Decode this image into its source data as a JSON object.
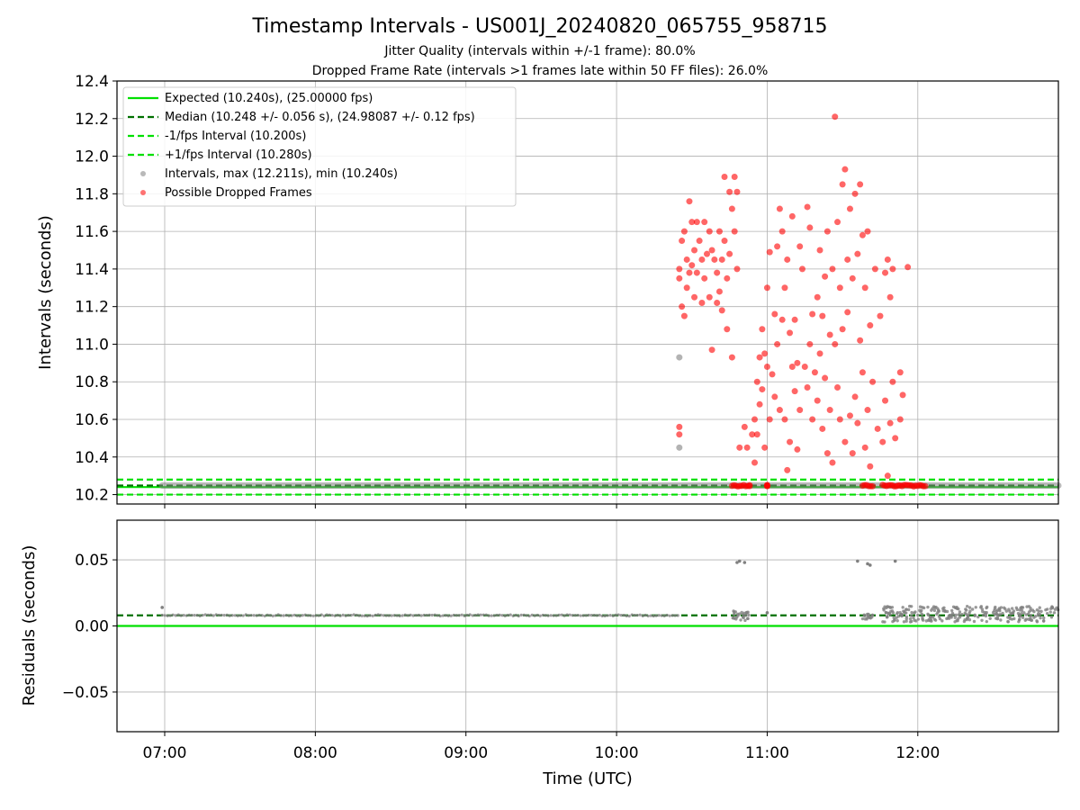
{
  "chart_data": [
    {
      "type": "scatter",
      "title": "Timestamp Intervals - US001J_20240820_065755_958715",
      "subtitle_1": "Jitter Quality (intervals within +/-1 frame): 80.0%",
      "subtitle_2": "Dropped Frame Rate (intervals >1 frames late within 50 FF files): 26.0%",
      "xlabel": "",
      "ylabel": "Intervals (seconds)",
      "xlim": [
        "06:41",
        "12:56"
      ],
      "ylim": [
        10.15,
        12.4
      ],
      "y_ticks": [
        "10.2",
        "10.4",
        "10.6",
        "10.8",
        "11.0",
        "11.2",
        "11.4",
        "11.6",
        "11.8",
        "12.0",
        "12.2",
        "12.4"
      ],
      "grid": true,
      "legend_position": "upper-left",
      "legend": [
        "Expected (10.240s), (25.00000 fps)",
        "Median (10.248 +/- 0.056 s), (24.98087 +/- 0.12 fps)",
        "-1/fps Interval (10.200s)",
        "+1/fps Interval (10.280s)",
        "Intervals, max (12.211s), min (10.240s)",
        "Possible Dropped Frames"
      ],
      "lines": {
        "expected": 10.24,
        "median": 10.248,
        "minus_1fps": 10.2,
        "plus_1fps": 10.28
      },
      "colors": {
        "expected": "#00e000",
        "median": "#007000",
        "bounds": "#00e000",
        "intervals": "#808080",
        "dropped": "#ff0000"
      },
      "normal_intervals_band": {
        "x_start": "06:59",
        "x_end": "12:56",
        "y": 10.248
      },
      "gray_outliers": [
        {
          "x": "10:25",
          "y": 10.93
        },
        {
          "x": "10:25",
          "y": 10.45
        }
      ],
      "dropped_frames_baseline": [
        {
          "x_start": "10:46",
          "x_end": "10:53",
          "y": 10.248
        },
        {
          "x_start": "11:00",
          "x_end": "11:00",
          "y": 10.248
        },
        {
          "x_start": "11:38",
          "x_end": "11:42",
          "y": 10.248
        },
        {
          "x_start": "11:46",
          "x_end": "12:03",
          "y": 10.248
        }
      ],
      "dropped_frames": [
        {
          "x": "10:25",
          "y": 11.4
        },
        {
          "x": "10:25",
          "y": 11.35
        },
        {
          "x": "10:26",
          "y": 11.55
        },
        {
          "x": "10:26",
          "y": 11.2
        },
        {
          "x": "10:27",
          "y": 11.6
        },
        {
          "x": "10:27",
          "y": 11.15
        },
        {
          "x": "10:28",
          "y": 11.45
        },
        {
          "x": "10:28",
          "y": 11.3
        },
        {
          "x": "10:29",
          "y": 11.76
        },
        {
          "x": "10:29",
          "y": 11.38
        },
        {
          "x": "10:30",
          "y": 11.65
        },
        {
          "x": "10:30",
          "y": 11.42
        },
        {
          "x": "10:31",
          "y": 11.25
        },
        {
          "x": "10:31",
          "y": 11.5
        },
        {
          "x": "10:32",
          "y": 11.65
        },
        {
          "x": "10:32",
          "y": 11.38
        },
        {
          "x": "10:33",
          "y": 11.55
        },
        {
          "x": "10:34",
          "y": 11.45
        },
        {
          "x": "10:34",
          "y": 11.22
        },
        {
          "x": "10:35",
          "y": 11.65
        },
        {
          "x": "10:35",
          "y": 11.35
        },
        {
          "x": "10:36",
          "y": 11.48
        },
        {
          "x": "10:37",
          "y": 11.6
        },
        {
          "x": "10:37",
          "y": 11.25
        },
        {
          "x": "10:38",
          "y": 11.5
        },
        {
          "x": "10:38",
          "y": 10.97
        },
        {
          "x": "10:39",
          "y": 11.45
        },
        {
          "x": "10:40",
          "y": 11.38
        },
        {
          "x": "10:40",
          "y": 11.22
        },
        {
          "x": "10:41",
          "y": 11.6
        },
        {
          "x": "10:41",
          "y": 11.28
        },
        {
          "x": "10:42",
          "y": 11.45
        },
        {
          "x": "10:42",
          "y": 11.18
        },
        {
          "x": "10:43",
          "y": 11.89
        },
        {
          "x": "10:43",
          "y": 11.55
        },
        {
          "x": "10:44",
          "y": 11.35
        },
        {
          "x": "10:44",
          "y": 11.08
        },
        {
          "x": "10:45",
          "y": 11.81
        },
        {
          "x": "10:45",
          "y": 11.48
        },
        {
          "x": "10:46",
          "y": 11.72
        },
        {
          "x": "10:46",
          "y": 10.93
        },
        {
          "x": "10:47",
          "y": 11.89
        },
        {
          "x": "10:47",
          "y": 11.6
        },
        {
          "x": "10:48",
          "y": 11.81
        },
        {
          "x": "10:48",
          "y": 11.4
        },
        {
          "x": "10:49",
          "y": 10.45
        },
        {
          "x": "10:25",
          "y": 10.56
        },
        {
          "x": "10:25",
          "y": 10.52
        },
        {
          "x": "10:51",
          "y": 10.56
        },
        {
          "x": "10:52",
          "y": 10.45
        },
        {
          "x": "10:53",
          "y": 10.25
        },
        {
          "x": "10:54",
          "y": 10.52
        },
        {
          "x": "10:55",
          "y": 10.6
        },
        {
          "x": "10:55",
          "y": 10.37
        },
        {
          "x": "10:56",
          "y": 10.8
        },
        {
          "x": "10:56",
          "y": 10.52
        },
        {
          "x": "10:57",
          "y": 10.93
        },
        {
          "x": "10:57",
          "y": 10.68
        },
        {
          "x": "10:58",
          "y": 11.08
        },
        {
          "x": "10:58",
          "y": 10.76
        },
        {
          "x": "10:59",
          "y": 10.45
        },
        {
          "x": "10:59",
          "y": 10.95
        },
        {
          "x": "11:00",
          "y": 11.3
        },
        {
          "x": "11:00",
          "y": 10.88
        },
        {
          "x": "11:01",
          "y": 11.49
        },
        {
          "x": "11:01",
          "y": 10.6
        },
        {
          "x": "11:02",
          "y": 10.84
        },
        {
          "x": "11:03",
          "y": 11.16
        },
        {
          "x": "11:03",
          "y": 10.72
        },
        {
          "x": "11:04",
          "y": 11.52
        },
        {
          "x": "11:04",
          "y": 11.0
        },
        {
          "x": "11:05",
          "y": 11.72
        },
        {
          "x": "11:05",
          "y": 10.65
        },
        {
          "x": "11:06",
          "y": 11.6
        },
        {
          "x": "11:06",
          "y": 11.13
        },
        {
          "x": "11:07",
          "y": 11.3
        },
        {
          "x": "11:07",
          "y": 10.6
        },
        {
          "x": "11:08",
          "y": 11.45
        },
        {
          "x": "11:08",
          "y": 10.33
        },
        {
          "x": "11:09",
          "y": 11.06
        },
        {
          "x": "11:09",
          "y": 10.48
        },
        {
          "x": "11:10",
          "y": 11.68
        },
        {
          "x": "11:10",
          "y": 10.88
        },
        {
          "x": "11:11",
          "y": 11.13
        },
        {
          "x": "11:11",
          "y": 10.75
        },
        {
          "x": "11:12",
          "y": 10.9
        },
        {
          "x": "11:12",
          "y": 10.44
        },
        {
          "x": "11:13",
          "y": 11.52
        },
        {
          "x": "11:13",
          "y": 10.65
        },
        {
          "x": "11:14",
          "y": 11.4
        },
        {
          "x": "11:15",
          "y": 10.88
        },
        {
          "x": "11:16",
          "y": 11.73
        },
        {
          "x": "11:16",
          "y": 10.77
        },
        {
          "x": "11:17",
          "y": 11.62
        },
        {
          "x": "11:17",
          "y": 11.0
        },
        {
          "x": "11:18",
          "y": 11.16
        },
        {
          "x": "11:18",
          "y": 10.6
        },
        {
          "x": "11:19",
          "y": 10.85
        },
        {
          "x": "11:20",
          "y": 11.25
        },
        {
          "x": "11:20",
          "y": 10.7
        },
        {
          "x": "11:21",
          "y": 11.5
        },
        {
          "x": "11:21",
          "y": 10.95
        },
        {
          "x": "11:22",
          "y": 11.15
        },
        {
          "x": "11:22",
          "y": 10.55
        },
        {
          "x": "11:23",
          "y": 11.36
        },
        {
          "x": "11:23",
          "y": 10.82
        },
        {
          "x": "11:24",
          "y": 11.6
        },
        {
          "x": "11:24",
          "y": 10.42
        },
        {
          "x": "11:25",
          "y": 11.05
        },
        {
          "x": "11:25",
          "y": 10.65
        },
        {
          "x": "11:26",
          "y": 11.4
        },
        {
          "x": "11:26",
          "y": 10.37
        },
        {
          "x": "11:27",
          "y": 12.21
        },
        {
          "x": "11:27",
          "y": 11.0
        },
        {
          "x": "11:28",
          "y": 11.65
        },
        {
          "x": "11:28",
          "y": 10.77
        },
        {
          "x": "11:29",
          "y": 11.3
        },
        {
          "x": "11:29",
          "y": 10.6
        },
        {
          "x": "11:30",
          "y": 11.85
        },
        {
          "x": "11:30",
          "y": 11.08
        },
        {
          "x": "11:31",
          "y": 11.93
        },
        {
          "x": "11:31",
          "y": 10.48
        },
        {
          "x": "11:32",
          "y": 11.45
        },
        {
          "x": "11:32",
          "y": 11.17
        },
        {
          "x": "11:33",
          "y": 11.72
        },
        {
          "x": "11:33",
          "y": 10.62
        },
        {
          "x": "11:34",
          "y": 11.35
        },
        {
          "x": "11:34",
          "y": 10.42
        },
        {
          "x": "11:35",
          "y": 11.8
        },
        {
          "x": "11:35",
          "y": 10.72
        },
        {
          "x": "11:36",
          "y": 11.48
        },
        {
          "x": "11:36",
          "y": 10.58
        },
        {
          "x": "11:37",
          "y": 11.85
        },
        {
          "x": "11:37",
          "y": 11.02
        },
        {
          "x": "11:38",
          "y": 11.58
        },
        {
          "x": "11:38",
          "y": 10.85
        },
        {
          "x": "11:39",
          "y": 11.3
        },
        {
          "x": "11:39",
          "y": 10.45
        },
        {
          "x": "11:40",
          "y": 11.6
        },
        {
          "x": "11:40",
          "y": 10.65
        },
        {
          "x": "11:41",
          "y": 11.1
        },
        {
          "x": "11:41",
          "y": 10.35
        },
        {
          "x": "11:42",
          "y": 10.8
        },
        {
          "x": "11:43",
          "y": 11.4
        },
        {
          "x": "11:44",
          "y": 10.55
        },
        {
          "x": "11:45",
          "y": 11.15
        },
        {
          "x": "11:46",
          "y": 10.48
        },
        {
          "x": "11:47",
          "y": 11.38
        },
        {
          "x": "11:47",
          "y": 10.7
        },
        {
          "x": "11:48",
          "y": 11.45
        },
        {
          "x": "11:48",
          "y": 10.3
        },
        {
          "x": "11:49",
          "y": 11.25
        },
        {
          "x": "11:49",
          "y": 10.58
        },
        {
          "x": "11:50",
          "y": 11.4
        },
        {
          "x": "11:50",
          "y": 10.8
        },
        {
          "x": "11:51",
          "y": 10.5
        },
        {
          "x": "11:53",
          "y": 10.85
        },
        {
          "x": "11:53",
          "y": 10.6
        },
        {
          "x": "11:54",
          "y": 10.73
        },
        {
          "x": "11:56",
          "y": 11.41
        }
      ]
    },
    {
      "type": "scatter",
      "title": "",
      "xlabel": "Time (UTC)",
      "ylabel": "Residuals (seconds)",
      "xlim": [
        "06:41",
        "12:56"
      ],
      "ylim": [
        -0.08,
        0.08
      ],
      "y_ticks": [
        "−0.05",
        "0.00",
        "0.05"
      ],
      "x_ticks": [
        "07:00",
        "08:00",
        "09:00",
        "10:00",
        "11:00",
        "12:00"
      ],
      "grid": true,
      "lines": {
        "zero": 0.0,
        "median": 0.008
      },
      "colors": {
        "zero": "#00e000",
        "median": "#007000",
        "points": "#808080"
      },
      "residual_band_quiet": {
        "x_start": "06:59",
        "x_end": "10:25",
        "y": 0.008,
        "first_point": {
          "x": "06:59",
          "y": 0.014
        }
      },
      "residual_clusters": [
        {
          "x_start": "10:46",
          "x_end": "10:53",
          "y_center": 0.008,
          "spread": 0.004
        },
        {
          "x_start": "11:38",
          "x_end": "11:42",
          "y_center": 0.007,
          "spread": 0.002
        },
        {
          "x_start": "11:46",
          "x_end": "12:56",
          "y_center": 0.009,
          "spread": 0.006
        }
      ],
      "residual_outliers": [
        {
          "x": "10:48",
          "y": 0.048
        },
        {
          "x": "10:49",
          "y": 0.049
        },
        {
          "x": "10:51",
          "y": 0.048
        },
        {
          "x": "11:00",
          "y": 0.01
        },
        {
          "x": "11:36",
          "y": 0.049
        },
        {
          "x": "11:40",
          "y": 0.047
        },
        {
          "x": "11:41",
          "y": 0.046
        },
        {
          "x": "11:51",
          "y": 0.049
        }
      ]
    }
  ]
}
